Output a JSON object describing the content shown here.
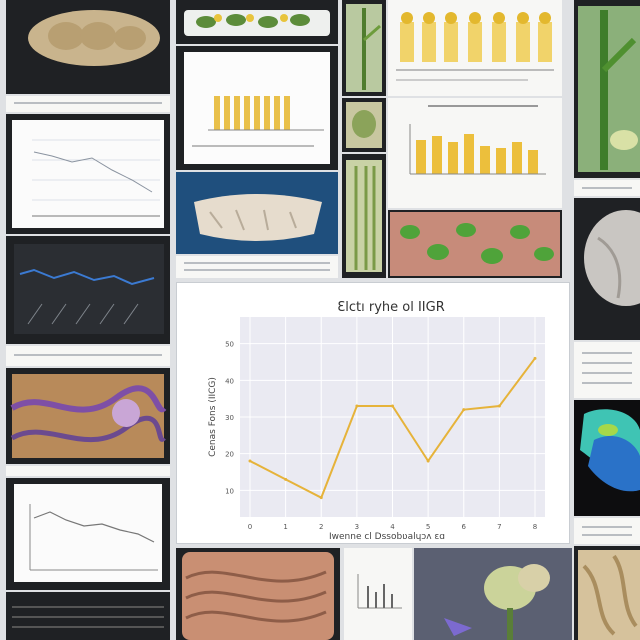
{
  "main_chart": {
    "title": "Ɛlctı ryhe ol IIGR",
    "xlabel": "Iwenne cl Dssobʋalɥɔʌ ɛɑ",
    "ylabel": "Cenas Fons (IICG)",
    "y_ticks": [
      "50",
      "40",
      "30",
      "20",
      "10"
    ],
    "x_ticks": [
      "0",
      "1",
      "2",
      "3",
      "4",
      "5",
      "6",
      "7",
      "8"
    ],
    "line_color": "#e6b33a"
  },
  "chart_data": {
    "type": "line",
    "title": "Ɛlctı ryhe ol IIGR",
    "xlabel": "Iwenne cl Dssobʋalɥɔʌ ɛɑ",
    "ylabel": "Cenas Fons (IICG)",
    "x": [
      0,
      1,
      2,
      3,
      4,
      5,
      6,
      7,
      8
    ],
    "y_ticks": [
      10,
      20,
      30,
      40,
      50
    ],
    "series": [
      {
        "values": [
          18,
          13,
          8,
          33,
          33,
          18,
          32,
          33,
          46
        ]
      }
    ],
    "ylim": [
      10,
      50
    ],
    "grid": true
  }
}
